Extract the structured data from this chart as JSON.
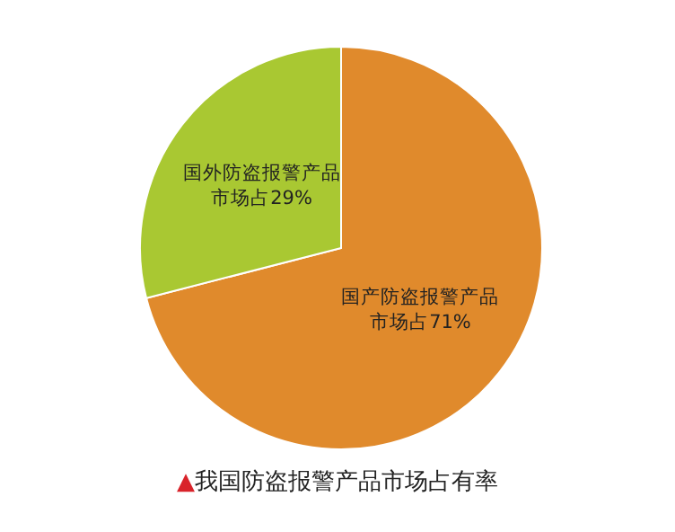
{
  "chart_data": {
    "type": "pie",
    "title": "▲我国防盗报警产品市场占有率",
    "categories": [
      "国产防盗报警产品市场占",
      "国外防盗报警产品市场占"
    ],
    "values": [
      71,
      29
    ],
    "value_labels": [
      "71%",
      "29%"
    ],
    "colors": [
      "#e08a2c",
      "#a9c832"
    ]
  }
}
